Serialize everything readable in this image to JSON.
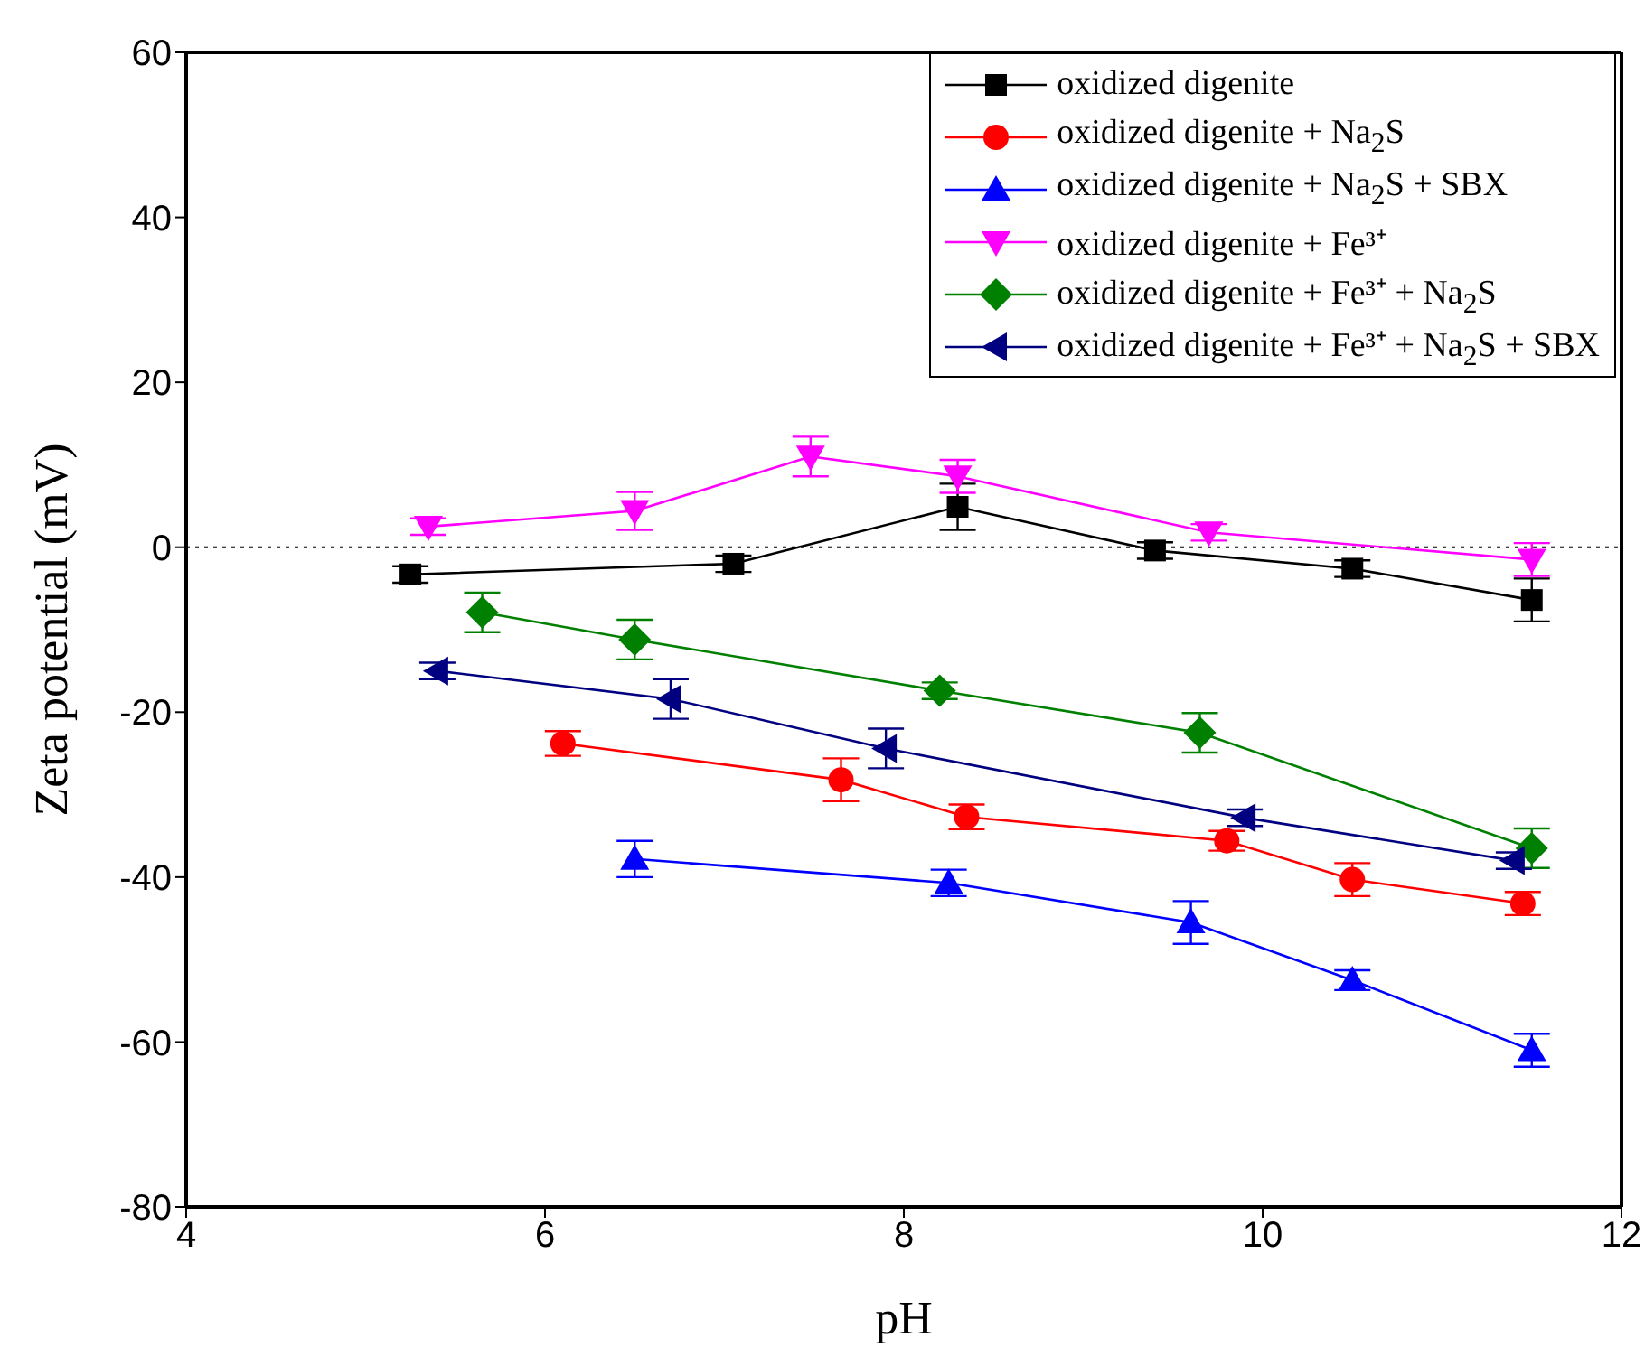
{
  "chart_data": {
    "type": "line",
    "xlabel": "pH",
    "ylabel": "Zeta potential (mV)",
    "xlim": [
      4,
      12
    ],
    "xticks": [
      4,
      6,
      8,
      10,
      12
    ],
    "ylim": [
      -80,
      60
    ],
    "yticks": [
      -80,
      -60,
      -40,
      -20,
      0,
      20,
      40,
      60
    ],
    "legend": "top right",
    "ref_lines": [
      {
        "axis": "y",
        "value": 0,
        "line_style": "dotted",
        "color": "#000000"
      }
    ],
    "series": [
      {
        "name": "oxidized digenite",
        "color": "#000000",
        "marker": "square",
        "x": [
          5.25,
          7.05,
          8.3,
          9.4,
          10.5,
          11.5
        ],
        "values": [
          -3.3,
          -2,
          4.9,
          -0.4,
          -2.6,
          -6.4
        ],
        "errors": [
          1,
          1,
          2.8,
          1,
          1,
          2.6
        ]
      },
      {
        "name": "oxidized digenite + Na$_{2}$S",
        "color": "#ff0000",
        "marker": "circle",
        "x": [
          6.1,
          7.65,
          8.35,
          9.8,
          10.5,
          11.45
        ],
        "values": [
          -23.8,
          -28.2,
          -32.7,
          -35.6,
          -40.3,
          -43.2
        ],
        "errors": [
          1.5,
          2.6,
          1.5,
          1.2,
          2,
          1.4
        ]
      },
      {
        "name": "oxidized digenite + Na$_{2}$S + SBX",
        "color": "#0000ff",
        "marker": "triangle",
        "x": [
          6.5,
          8.25,
          9.6,
          10.5,
          11.5
        ],
        "values": [
          -37.8,
          -40.7,
          -45.5,
          -52.5,
          -61
        ],
        "errors": [
          2.2,
          1.6,
          2.6,
          1.2,
          2
        ]
      },
      {
        "name": "oxidized digenite + Fe³⁺",
        "color": "#ff00ff",
        "marker": "triangle-down",
        "x": [
          5.35,
          6.5,
          7.48,
          8.3,
          9.7,
          11.5
        ],
        "values": [
          2.5,
          4.4,
          11,
          8.6,
          1.8,
          -1.5
        ],
        "errors": [
          1,
          2.3,
          2.4,
          2,
          1,
          2
        ]
      },
      {
        "name": "oxidized digenite + Fe³⁺ + Na$_{2}$S",
        "color": "#008000",
        "marker": "diamond",
        "x": [
          5.65,
          6.5,
          8.2,
          9.65,
          11.5
        ],
        "values": [
          -7.9,
          -11.2,
          -17.4,
          -22.5,
          -36.5
        ],
        "errors": [
          2.4,
          2.4,
          1,
          2.4,
          2.4
        ]
      },
      {
        "name": "oxidized digenite + Fe³⁺ + Na$_{2}$S + SBX",
        "color": "#000080",
        "marker": "triangle-left",
        "x": [
          5.4,
          6.7,
          7.9,
          9.9,
          11.4
        ],
        "values": [
          -15,
          -18.4,
          -24.4,
          -32.8,
          -38
        ],
        "errors": [
          1,
          2.4,
          2.4,
          1,
          1
        ]
      }
    ]
  }
}
